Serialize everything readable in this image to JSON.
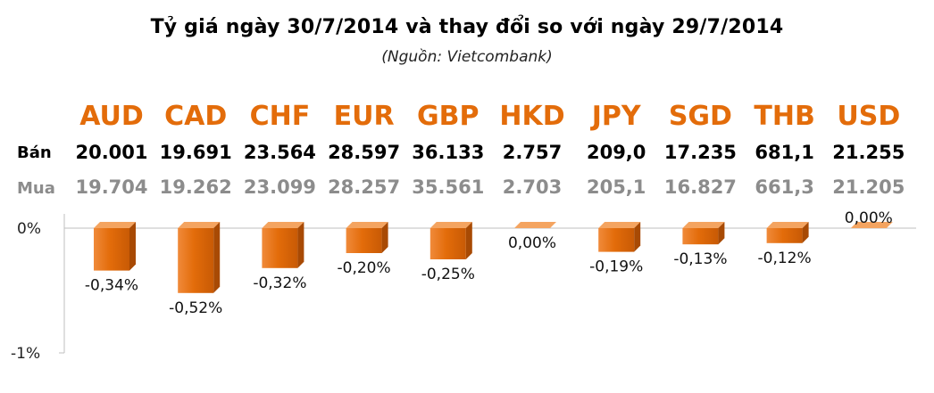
{
  "title": "Tỷ giá ngày 30/7/2014 và thay đổi so với ngày 29/7/2014",
  "subtitle": "(Nguồn: Vietcombank)",
  "colors": {
    "bar": "#e36c0a",
    "bar_light": "#f4a460",
    "code": "#e36c0a",
    "buy_text": "#8c8c8c"
  },
  "row_labels": {
    "sell": "Bán",
    "buy": "Mua"
  },
  "chart_data": {
    "type": "bar",
    "categories": [
      "AUD",
      "CAD",
      "CHF",
      "EUR",
      "GBP",
      "HKD",
      "JPY",
      "SGD",
      "THB",
      "USD"
    ],
    "sell": [
      "20.001",
      "19.691",
      "23.564",
      "28.597",
      "36.133",
      "2.757",
      "209,0",
      "17.235",
      "681,1",
      "21.255"
    ],
    "buy": [
      "19.704",
      "19.262",
      "23.099",
      "28.257",
      "35.561",
      "2.703",
      "205,1",
      "16.827",
      "661,3",
      "21.205"
    ],
    "series": [
      {
        "values": [
          -0.34,
          -0.52,
          -0.32,
          -0.2,
          -0.25,
          0.0,
          -0.19,
          -0.13,
          -0.12,
          0.0
        ]
      }
    ],
    "data_labels": [
      "-0,34%",
      "-0,52%",
      "-0,32%",
      "-0,20%",
      "-0,25%",
      "0,00%",
      "-0,19%",
      "-0,13%",
      "-0,12%",
      "0,00%"
    ],
    "yticks": [
      "0%",
      "-1%"
    ],
    "ylim": [
      -1,
      0
    ],
    "grid": false
  }
}
